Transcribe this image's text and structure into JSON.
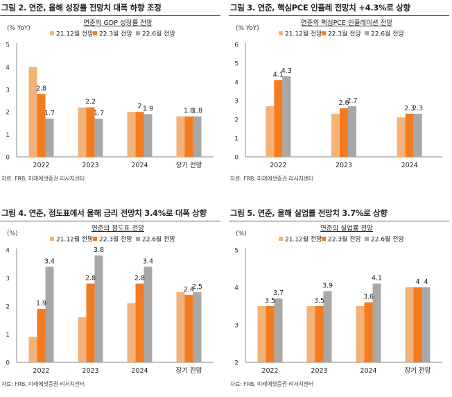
{
  "colors": {
    "s0": "#F3B278",
    "s1": "#F47C20",
    "s2": "#A8A8A8"
  },
  "chart_data": [
    {
      "type": "bar",
      "panel_title": "그림 2. 연준, 올해 성장률 전망치 대폭 하향 조정",
      "title": "연준의 GDP 성장률 전망",
      "unit_label": "(% YoY)",
      "source": "자료: FRB, 미래에셋증권 리서치센터",
      "categories": [
        "2022",
        "2023",
        "2024",
        "장기 전망"
      ],
      "ylim": [
        0,
        5
      ],
      "yticks": [
        0,
        1,
        2,
        3,
        4,
        5
      ],
      "series": [
        {
          "name": "21.12월 전망",
          "values": [
            4.0,
            2.2,
            2.0,
            1.8
          ]
        },
        {
          "name": "22.3월 전망",
          "values": [
            2.8,
            2.2,
            2.0,
            1.8
          ]
        },
        {
          "name": "22.6월 전망",
          "values": [
            1.7,
            1.7,
            1.9,
            1.8
          ]
        }
      ],
      "data_labels": [
        {
          "series": 1,
          "index": 0,
          "text": "2.8"
        },
        {
          "series": 2,
          "index": 0,
          "text": "1.7"
        },
        {
          "series": 1,
          "index": 1,
          "text": "2.2"
        },
        {
          "series": 2,
          "index": 1,
          "text": "1.7"
        },
        {
          "series": 1,
          "index": 2,
          "text": "2"
        },
        {
          "series": 2,
          "index": 2,
          "text": "1.9"
        },
        {
          "series": 1,
          "index": 3,
          "text": "1.8"
        },
        {
          "series": 2,
          "index": 3,
          "text": "1.8"
        }
      ]
    },
    {
      "type": "bar",
      "panel_title": "그림 3. 연준, 핵심PCE 인플레 전망치 +4.3%로 상향",
      "title": "연준의 핵심PCE 인플레이션 전망",
      "unit_label": "(% YoY)",
      "source": "자료: FRB, 미래에셋증권 리서치센터",
      "categories": [
        "2022",
        "2023",
        "2024"
      ],
      "ylim": [
        0,
        6
      ],
      "yticks": [
        0,
        1,
        2,
        3,
        4,
        5,
        6
      ],
      "series": [
        {
          "name": "21.12월 전망",
          "values": [
            2.7,
            2.3,
            2.1
          ]
        },
        {
          "name": "22.3월 전망",
          "values": [
            4.1,
            2.6,
            2.3
          ]
        },
        {
          "name": "22.6월 전망",
          "values": [
            4.3,
            2.7,
            2.3
          ]
        }
      ],
      "data_labels": [
        {
          "series": 1,
          "index": 0,
          "text": "4.1"
        },
        {
          "series": 2,
          "index": 0,
          "text": "4.3"
        },
        {
          "series": 1,
          "index": 1,
          "text": "2.6"
        },
        {
          "series": 2,
          "index": 1,
          "text": "2.7"
        },
        {
          "series": 1,
          "index": 2,
          "text": "2.3"
        },
        {
          "series": 2,
          "index": 2,
          "text": "2.3"
        }
      ]
    },
    {
      "type": "bar",
      "panel_title": "그림 4. 연준, 점도표에서 올해 금리 전망치 3.4%로 대폭 상향",
      "title": "연준의 점도표 전망",
      "unit_label": "(%)",
      "source": "자료: FRB, 미래에셋증권 리서치센터",
      "categories": [
        "2022",
        "2023",
        "2024",
        "장기 전망"
      ],
      "ylim": [
        0,
        4
      ],
      "yticks": [
        0,
        1,
        2,
        3,
        4
      ],
      "series": [
        {
          "name": "21.12월 전망",
          "values": [
            0.9,
            1.6,
            2.1,
            2.5
          ]
        },
        {
          "name": "22.3월 전망",
          "values": [
            1.9,
            2.8,
            2.8,
            2.4
          ]
        },
        {
          "name": "22.6월 전망",
          "values": [
            3.4,
            3.8,
            3.4,
            2.5
          ]
        }
      ],
      "data_labels": [
        {
          "series": 1,
          "index": 0,
          "text": "1.9"
        },
        {
          "series": 2,
          "index": 0,
          "text": "3.4"
        },
        {
          "series": 1,
          "index": 1,
          "text": "2.8"
        },
        {
          "series": 2,
          "index": 1,
          "text": "3.8"
        },
        {
          "series": 1,
          "index": 2,
          "text": "2.8"
        },
        {
          "series": 2,
          "index": 2,
          "text": "3.4"
        },
        {
          "series": 1,
          "index": 3,
          "text": "2.4"
        },
        {
          "series": 2,
          "index": 3,
          "text": "2.5"
        }
      ]
    },
    {
      "type": "bar",
      "panel_title": "그림 5. 연준, 올해 실업률 전망치 3.7%로 상향",
      "title": "연준의 실업률 전망",
      "unit_label": "(%)",
      "source": "자료: FRB, 미래에셋증권 리서치센터",
      "categories": [
        "2022",
        "2023",
        "2024",
        "장기 전망"
      ],
      "ylim": [
        2,
        5
      ],
      "yticks": [
        2,
        3,
        4,
        5
      ],
      "series": [
        {
          "name": "21.12월 전망",
          "values": [
            3.5,
            3.5,
            3.5,
            4.0
          ]
        },
        {
          "name": "22.3월 전망",
          "values": [
            3.5,
            3.5,
            3.6,
            4.0
          ]
        },
        {
          "name": "22.6월 전망",
          "values": [
            3.7,
            3.9,
            4.1,
            4.0
          ]
        }
      ],
      "data_labels": [
        {
          "series": 1,
          "index": 0,
          "text": "3.5"
        },
        {
          "series": 2,
          "index": 0,
          "text": "3.7"
        },
        {
          "series": 1,
          "index": 1,
          "text": "3.5"
        },
        {
          "series": 2,
          "index": 1,
          "text": "3.9"
        },
        {
          "series": 1,
          "index": 2,
          "text": "3.6"
        },
        {
          "series": 2,
          "index": 2,
          "text": "4.1"
        },
        {
          "series": 1,
          "index": 3,
          "text": "4"
        },
        {
          "series": 2,
          "index": 3,
          "text": "4"
        }
      ]
    }
  ]
}
